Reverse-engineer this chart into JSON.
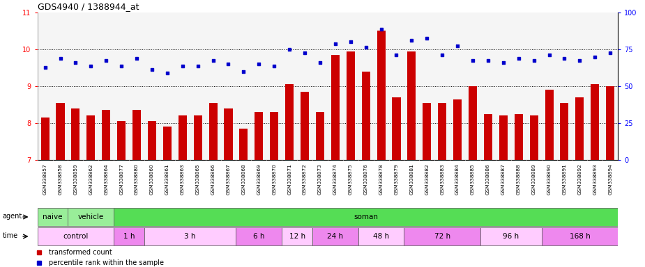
{
  "title": "GDS4940 / 1388944_at",
  "categories": [
    "GSM338857",
    "GSM338858",
    "GSM338859",
    "GSM338862",
    "GSM338864",
    "GSM338877",
    "GSM338880",
    "GSM338860",
    "GSM338861",
    "GSM338863",
    "GSM338865",
    "GSM338866",
    "GSM338867",
    "GSM338868",
    "GSM338869",
    "GSM338870",
    "GSM338871",
    "GSM338872",
    "GSM338873",
    "GSM338874",
    "GSM338875",
    "GSM338876",
    "GSM338878",
    "GSM338879",
    "GSM338881",
    "GSM338882",
    "GSM338883",
    "GSM338884",
    "GSM338885",
    "GSM338886",
    "GSM338887",
    "GSM338888",
    "GSM338889",
    "GSM338890",
    "GSM338891",
    "GSM338892",
    "GSM338893",
    "GSM338894"
  ],
  "bar_values": [
    8.15,
    8.55,
    8.4,
    8.2,
    8.35,
    8.05,
    8.35,
    8.05,
    7.9,
    8.2,
    8.2,
    8.55,
    8.4,
    7.85,
    8.3,
    8.3,
    9.05,
    8.85,
    8.3,
    9.85,
    9.95,
    9.4,
    10.5,
    8.7,
    9.95,
    8.55,
    8.55,
    8.65,
    9.0,
    8.25,
    8.2,
    8.25,
    8.2,
    8.9,
    8.55,
    8.7,
    9.05,
    9.0
  ],
  "dot_values": [
    9.5,
    9.75,
    9.65,
    9.55,
    9.7,
    9.55,
    9.75,
    9.45,
    9.35,
    9.55,
    9.55,
    9.7,
    9.6,
    9.4,
    9.6,
    9.55,
    10.0,
    9.9,
    9.65,
    10.15,
    10.2,
    10.05,
    10.55,
    9.85,
    10.25,
    10.3,
    9.85,
    10.1,
    9.7,
    9.7,
    9.65,
    9.75,
    9.7,
    9.85,
    9.75,
    9.7,
    9.8,
    9.9
  ],
  "bar_color": "#cc0000",
  "dot_color": "#0000cc",
  "ylim_left": [
    7,
    11
  ],
  "ylim_right": [
    0,
    100
  ],
  "yticks_left": [
    7,
    8,
    9,
    10,
    11
  ],
  "yticks_right": [
    0,
    25,
    50,
    75,
    100
  ],
  "agent_groups": [
    {
      "label": "naive",
      "start": 0,
      "end": 2,
      "color": "#99ee99"
    },
    {
      "label": "vehicle",
      "start": 2,
      "end": 5,
      "color": "#99ee99"
    },
    {
      "label": "soman",
      "start": 5,
      "end": 38,
      "color": "#55dd55"
    }
  ],
  "time_groups": [
    {
      "label": "control",
      "start": 0,
      "end": 5,
      "color": "#ffccff"
    },
    {
      "label": "1 h",
      "start": 5,
      "end": 7,
      "color": "#ee88ee"
    },
    {
      "label": "3 h",
      "start": 7,
      "end": 13,
      "color": "#ffccff"
    },
    {
      "label": "6 h",
      "start": 13,
      "end": 16,
      "color": "#ee88ee"
    },
    {
      "label": "12 h",
      "start": 16,
      "end": 18,
      "color": "#ffccff"
    },
    {
      "label": "24 h",
      "start": 18,
      "end": 21,
      "color": "#ee88ee"
    },
    {
      "label": "48 h",
      "start": 21,
      "end": 24,
      "color": "#ffccff"
    },
    {
      "label": "72 h",
      "start": 24,
      "end": 29,
      "color": "#ee88ee"
    },
    {
      "label": "96 h",
      "start": 29,
      "end": 33,
      "color": "#ffccff"
    },
    {
      "label": "168 h",
      "start": 33,
      "end": 38,
      "color": "#ee88ee"
    }
  ],
  "legend_items": [
    {
      "label": "transformed count",
      "color": "#cc0000"
    },
    {
      "label": "percentile rank within the sample",
      "color": "#0000cc"
    }
  ],
  "label_bg": "#d4d4d4",
  "plot_bg": "#f5f5f5"
}
